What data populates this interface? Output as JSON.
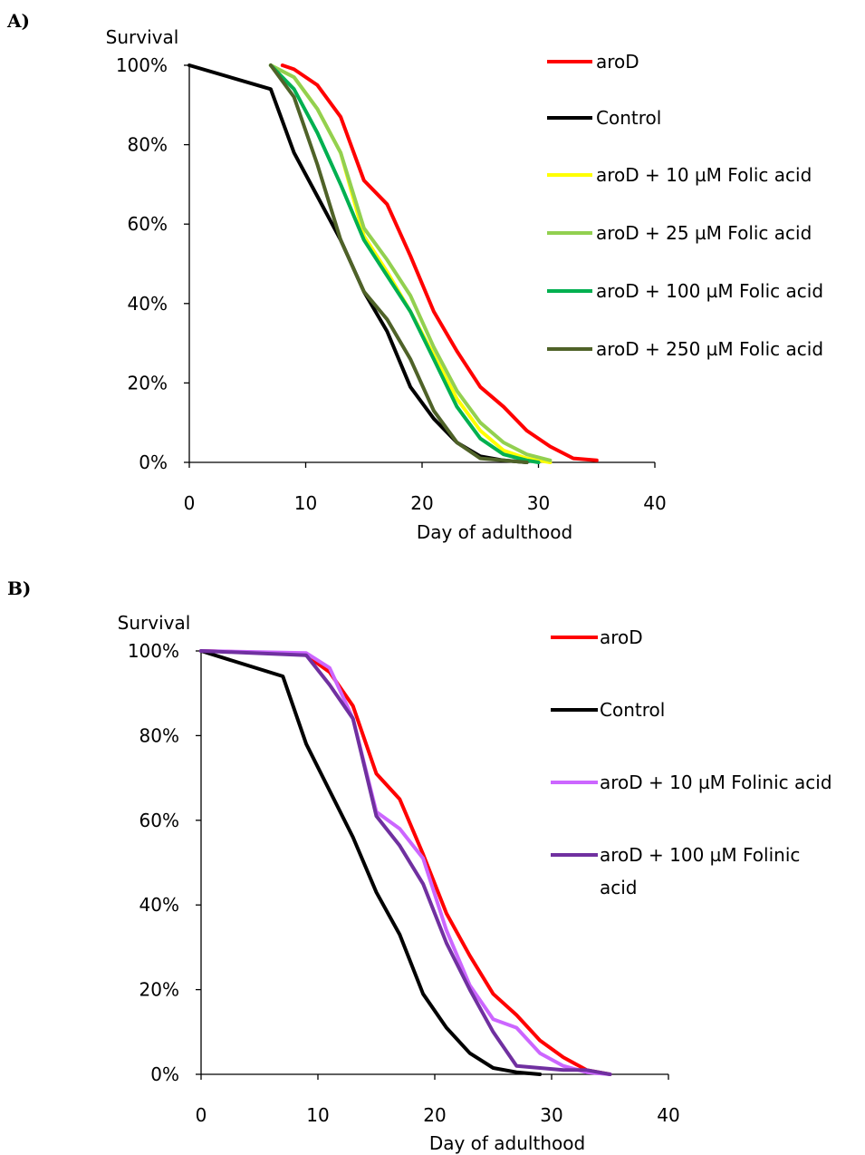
{
  "chart_data": [
    {
      "panel_label": "A)",
      "type": "line",
      "ylabel": "Survival",
      "xlabel": "Day of adulthood",
      "xlim": [
        0,
        40
      ],
      "ylim": [
        0,
        100
      ],
      "x_ticks": [
        "0",
        "10",
        "20",
        "30",
        "40"
      ],
      "y_ticks": [
        "0%",
        "20%",
        "40%",
        "60%",
        "80%",
        "100%"
      ],
      "grid": false,
      "legend_position": "right",
      "series": [
        {
          "name": "aroD",
          "color": "#ff0000",
          "points": [
            [
              8,
              100
            ],
            [
              9,
              99
            ],
            [
              11,
              95
            ],
            [
              13,
              87
            ],
            [
              15,
              71
            ],
            [
              17,
              65
            ],
            [
              19,
              52
            ],
            [
              21,
              38
            ],
            [
              23,
              28
            ],
            [
              25,
              19
            ],
            [
              27,
              14
            ],
            [
              29,
              8
            ],
            [
              31,
              4
            ],
            [
              33,
              1
            ],
            [
              35,
              0.5
            ]
          ]
        },
        {
          "name": "Control",
          "color": "#000000",
          "points": [
            [
              0,
              100
            ],
            [
              7,
              94
            ],
            [
              9,
              78
            ],
            [
              11,
              67
            ],
            [
              13,
              56
            ],
            [
              15,
              43
            ],
            [
              17,
              33
            ],
            [
              19,
              19
            ],
            [
              21,
              11
            ],
            [
              23,
              5
            ],
            [
              25,
              1.5
            ],
            [
              27,
              0.5
            ],
            [
              29,
              0
            ]
          ]
        },
        {
          "name": "aroD + 10 µM Folic acid",
          "color": "#ffff00",
          "points": [
            [
              7,
              100
            ],
            [
              9,
              97
            ],
            [
              11,
              89
            ],
            [
              13,
              78
            ],
            [
              15,
              57
            ],
            [
              17,
              48
            ],
            [
              19,
              38
            ],
            [
              21,
              27
            ],
            [
              23,
              16
            ],
            [
              25,
              8
            ],
            [
              27,
              3
            ],
            [
              29,
              1
            ],
            [
              31,
              0
            ]
          ]
        },
        {
          "name": "aroD + 25 µM Folic acid",
          "color": "#92d050",
          "points": [
            [
              7,
              100
            ],
            [
              9,
              97
            ],
            [
              11,
              89
            ],
            [
              13,
              78
            ],
            [
              15,
              59
            ],
            [
              17,
              51
            ],
            [
              19,
              42
            ],
            [
              21,
              29
            ],
            [
              23,
              18
            ],
            [
              25,
              10
            ],
            [
              27,
              5
            ],
            [
              29,
              2
            ],
            [
              31,
              0.5
            ]
          ]
        },
        {
          "name": "aroD + 100 µM Folic acid",
          "color": "#00b050",
          "points": [
            [
              7,
              100
            ],
            [
              9,
              94
            ],
            [
              11,
              83
            ],
            [
              13,
              70
            ],
            [
              15,
              56
            ],
            [
              17,
              47
            ],
            [
              19,
              38
            ],
            [
              21,
              26
            ],
            [
              23,
              14
            ],
            [
              25,
              6
            ],
            [
              27,
              2
            ],
            [
              29,
              0.5
            ],
            [
              30,
              0
            ]
          ]
        },
        {
          "name": "aroD + 250 µM Folic acid",
          "color": "#4f6228",
          "points": [
            [
              7,
              100
            ],
            [
              9,
              92
            ],
            [
              11,
              75
            ],
            [
              13,
              56
            ],
            [
              15,
              43
            ],
            [
              17,
              36
            ],
            [
              19,
              26
            ],
            [
              21,
              13
            ],
            [
              23,
              5
            ],
            [
              25,
              1
            ],
            [
              27,
              0.5
            ],
            [
              29,
              0
            ]
          ]
        }
      ]
    },
    {
      "panel_label": "B)",
      "type": "line",
      "ylabel": "Survival",
      "xlabel": "Day of adulthood",
      "xlim": [
        0,
        40
      ],
      "ylim": [
        0,
        100
      ],
      "x_ticks": [
        "0",
        "10",
        "20",
        "30",
        "40"
      ],
      "y_ticks": [
        "0%",
        "20%",
        "40%",
        "60%",
        "80%",
        "100%"
      ],
      "grid": false,
      "legend_position": "right",
      "series": [
        {
          "name": "aroD",
          "color": "#ff0000",
          "points": [
            [
              0,
              100
            ],
            [
              7,
              99.5
            ],
            [
              9,
              99
            ],
            [
              11,
              95
            ],
            [
              13,
              87
            ],
            [
              15,
              71
            ],
            [
              17,
              65
            ],
            [
              19,
              52
            ],
            [
              21,
              38
            ],
            [
              23,
              28
            ],
            [
              25,
              19
            ],
            [
              27,
              14
            ],
            [
              29,
              8
            ],
            [
              31,
              4
            ],
            [
              33,
              1
            ],
            [
              35,
              0
            ]
          ]
        },
        {
          "name": "Control",
          "color": "#000000",
          "points": [
            [
              0,
              100
            ],
            [
              7,
              94
            ],
            [
              9,
              78
            ],
            [
              11,
              67
            ],
            [
              13,
              56
            ],
            [
              15,
              43
            ],
            [
              17,
              33
            ],
            [
              19,
              19
            ],
            [
              21,
              11
            ],
            [
              23,
              5
            ],
            [
              25,
              1.5
            ],
            [
              27,
              0.5
            ],
            [
              29,
              0
            ]
          ]
        },
        {
          "name": "aroD + 10 µM Folinic acid",
          "color": "#cc66ff",
          "points": [
            [
              0,
              100
            ],
            [
              9,
              99.5
            ],
            [
              11,
              96
            ],
            [
              13,
              84
            ],
            [
              15,
              62
            ],
            [
              17,
              58
            ],
            [
              19,
              51
            ],
            [
              21,
              34
            ],
            [
              23,
              21
            ],
            [
              25,
              13
            ],
            [
              27,
              11
            ],
            [
              29,
              5
            ],
            [
              31,
              2
            ],
            [
              33,
              0.5
            ],
            [
              35,
              0
            ]
          ]
        },
        {
          "name": "aroD + 100 µM Folinic acid",
          "color": "#7030a0",
          "points": [
            [
              0,
              100
            ],
            [
              9,
              99
            ],
            [
              11,
              92
            ],
            [
              13,
              84
            ],
            [
              15,
              61
            ],
            [
              17,
              54
            ],
            [
              19,
              45
            ],
            [
              21,
              31
            ],
            [
              23,
              20
            ],
            [
              25,
              10
            ],
            [
              27,
              2
            ],
            [
              29,
              1.5
            ],
            [
              31,
              1
            ],
            [
              33,
              1
            ],
            [
              35,
              0
            ]
          ]
        }
      ]
    }
  ]
}
